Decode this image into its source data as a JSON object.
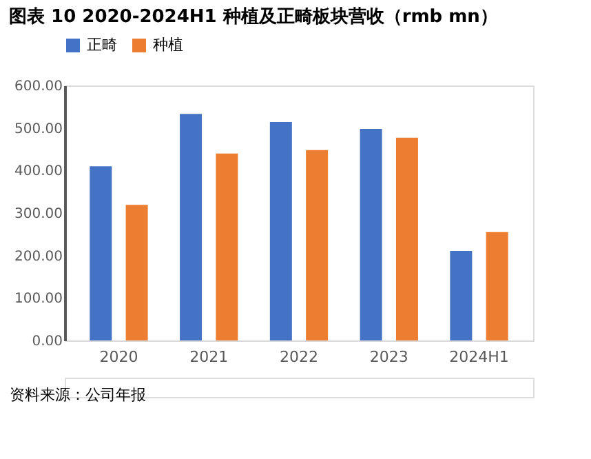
{
  "chart_data": {
    "type": "bar",
    "title": "图表 10 2020-2024H1 种植及正畸板块营收（rmb mn）",
    "categories": [
      "2020",
      "2021",
      "2022",
      "2023",
      "2024H1"
    ],
    "series": [
      {
        "name": "正畸",
        "color": "#4472c4",
        "values": [
          410,
          533,
          514,
          498,
          211
        ]
      },
      {
        "name": "种植",
        "color": "#ed7d31",
        "values": [
          319,
          440,
          448,
          477,
          255
        ]
      }
    ],
    "ylim": [
      0,
      600
    ],
    "yticks": [
      {
        "value": 0,
        "label": "0.00"
      },
      {
        "value": 100,
        "label": "100.00"
      },
      {
        "value": 200,
        "label": "200.00"
      },
      {
        "value": 300,
        "label": "300.00"
      },
      {
        "value": 400,
        "label": "400.00"
      },
      {
        "value": 500,
        "label": "500.00"
      },
      {
        "value": 600,
        "label": "600.00"
      }
    ],
    "grid": false,
    "legend": "top",
    "annotations": [
      "资料来源：公司年报"
    ]
  }
}
